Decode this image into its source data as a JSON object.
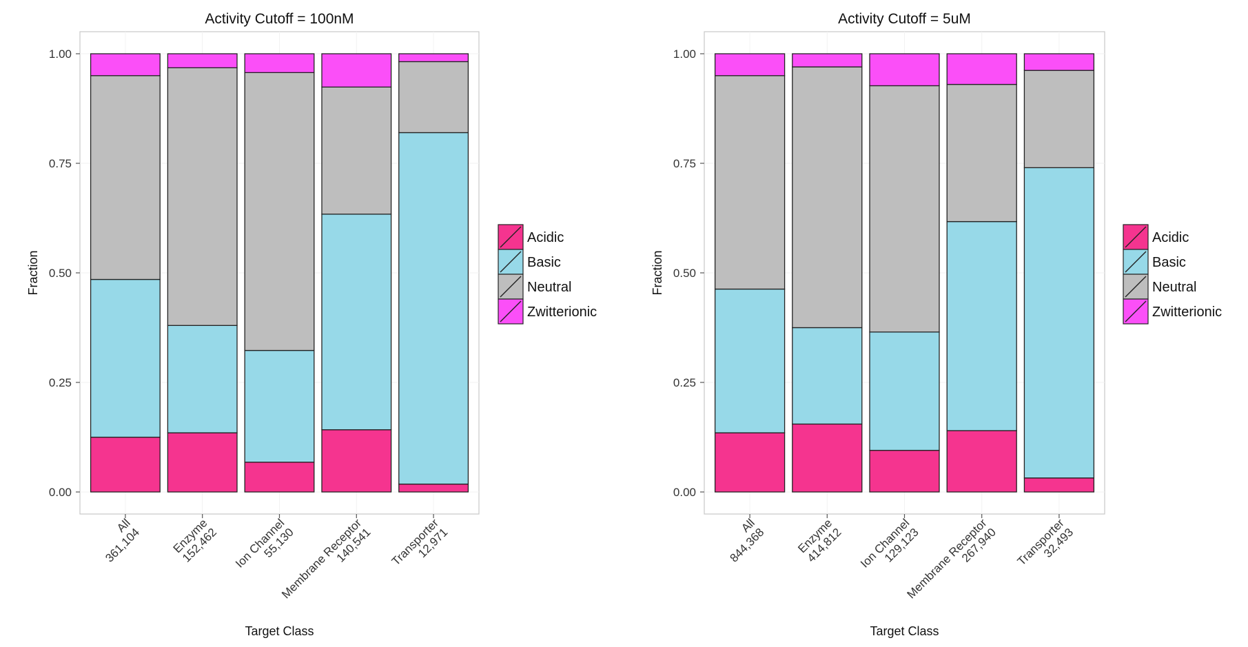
{
  "chart_data": [
    {
      "type": "bar",
      "stacked": true,
      "title": "Activity Cutoff = 100nM",
      "xlabel": "Target Class",
      "ylabel": "Fraction",
      "ylim": [
        0,
        1
      ],
      "yticks": [
        "0.00",
        "0.25",
        "0.50",
        "0.75",
        "1.00"
      ],
      "categories": [
        {
          "name": "All",
          "count": "361,104"
        },
        {
          "name": "Enzyme",
          "count": "152,462"
        },
        {
          "name": "Ion Channel",
          "count": "55,130"
        },
        {
          "name": "Membrane Receptor",
          "count": "140,541"
        },
        {
          "name": "Transporter",
          "count": "12,971"
        }
      ],
      "series": [
        {
          "name": "Acidic",
          "values": [
            0.125,
            0.135,
            0.068,
            0.142,
            0.018
          ]
        },
        {
          "name": "Basic",
          "values": [
            0.36,
            0.245,
            0.255,
            0.492,
            0.802
          ]
        },
        {
          "name": "Neutral",
          "values": [
            0.465,
            0.588,
            0.634,
            0.29,
            0.162
          ]
        },
        {
          "name": "Zwitterionic",
          "values": [
            0.05,
            0.032,
            0.043,
            0.076,
            0.018
          ]
        }
      ]
    },
    {
      "type": "bar",
      "stacked": true,
      "title": "Activity Cutoff = 5uM",
      "xlabel": "Target Class",
      "ylabel": "Fraction",
      "ylim": [
        0,
        1
      ],
      "yticks": [
        "0.00",
        "0.25",
        "0.50",
        "0.75",
        "1.00"
      ],
      "categories": [
        {
          "name": "All",
          "count": "844,368"
        },
        {
          "name": "Enzyme",
          "count": "414,812"
        },
        {
          "name": "Ion Channel",
          "count": "129,123"
        },
        {
          "name": "Membrane Receptor",
          "count": "267,940"
        },
        {
          "name": "Transporter",
          "count": "32,493"
        }
      ],
      "series": [
        {
          "name": "Acidic",
          "values": [
            0.135,
            0.155,
            0.095,
            0.14,
            0.032
          ]
        },
        {
          "name": "Basic",
          "values": [
            0.328,
            0.22,
            0.27,
            0.477,
            0.708
          ]
        },
        {
          "name": "Neutral",
          "values": [
            0.487,
            0.595,
            0.562,
            0.313,
            0.222
          ]
        },
        {
          "name": "Zwitterionic",
          "values": [
            0.05,
            0.03,
            0.073,
            0.07,
            0.038
          ]
        }
      ]
    }
  ],
  "legend": {
    "entries": [
      "Acidic",
      "Basic",
      "Neutral",
      "Zwitterionic"
    ]
  },
  "colors": {
    "Acidic": "#f5348f",
    "Basic": "#97d9e8",
    "Neutral": "#bebebe",
    "Zwitterionic": "#fb4ff8",
    "bar_outline": "#222222",
    "panel_border": "#c8c8c8",
    "grid": "#f2f2f2"
  }
}
